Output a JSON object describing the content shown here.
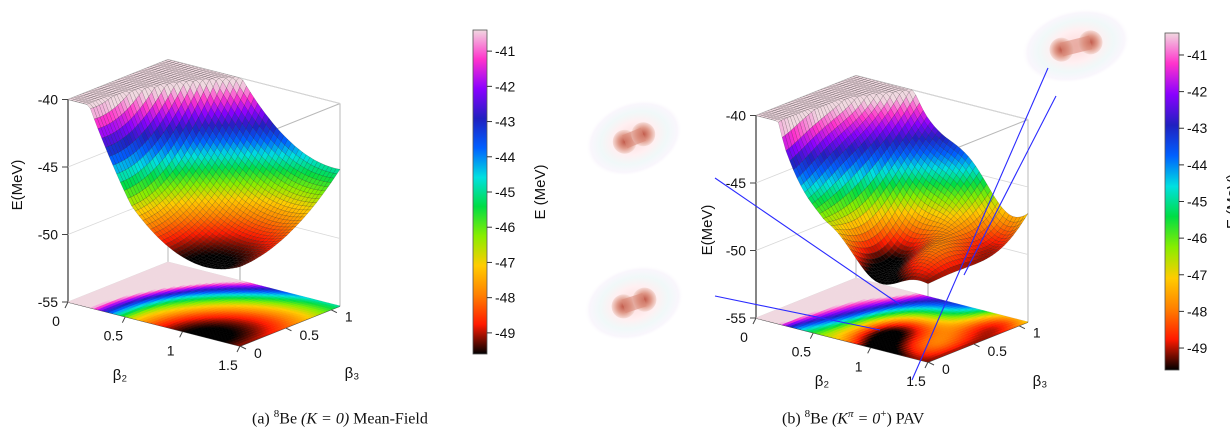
{
  "chart_data": [
    {
      "type": "surface3d",
      "caption": {
        "prefix": "(a) ",
        "isotope": "Be",
        "mass": "8",
        "condition": "(K = 0)",
        "method": "Mean-Field"
      },
      "xlabel": "β₂",
      "ylabel": "β₃",
      "zlabel": "E(MeV)",
      "x_ticks": [
        "0",
        "0.5",
        "1",
        "1.5"
      ],
      "y_ticks": [
        "0",
        "0.5",
        "1"
      ],
      "z_ticks": [
        "-40",
        "-45",
        "-50",
        "-55"
      ],
      "xlim": [
        0,
        1.5
      ],
      "ylim": [
        0,
        1.1
      ],
      "zlim": [
        -55,
        -40
      ],
      "minimum": {
        "beta2": 1.2,
        "beta3": 0.0,
        "E": -49.8
      },
      "colorbar": {
        "label": "E (MeV)",
        "ticks": [
          "-41",
          "-42",
          "-43",
          "-44",
          "-45",
          "-46",
          "-47",
          "-48",
          "-49"
        ],
        "range": [
          -49.6,
          -40.4
        ]
      }
    },
    {
      "type": "surface3d",
      "caption": {
        "prefix": "(b) ",
        "isotope": "Be",
        "mass": "8",
        "condition": "(K",
        "parity": "π",
        "condition_end": " = 0",
        "parity_sup": "+",
        "method": ") PAV"
      },
      "xlabel": "β₂",
      "ylabel": "β₃",
      "zlabel": "E(MeV)",
      "x_ticks": [
        "0",
        "0.5",
        "1",
        "1.5"
      ],
      "y_ticks": [
        "0",
        "0.5",
        "1"
      ],
      "z_ticks": [
        "-40",
        "-45",
        "-50",
        "-55"
      ],
      "xlim": [
        0,
        1.5
      ],
      "ylim": [
        0,
        1.1
      ],
      "zlim": [
        -55,
        -40
      ],
      "minimum": {
        "beta2": 1.3,
        "beta3": 0.0,
        "E": -49.8
      },
      "colorbar": {
        "label": "E (MeV)",
        "ticks": [
          "-41",
          "-42",
          "-43",
          "-44",
          "-45",
          "-46",
          "-47",
          "-48",
          "-49"
        ],
        "range": [
          -49.6,
          -40.4
        ]
      }
    }
  ],
  "colors": {
    "scale": [
      "#000000",
      "#ff1a00",
      "#ff8000",
      "#ffcc00",
      "#88ee00",
      "#00dd44",
      "#00e0e0",
      "#0060ff",
      "#2020c0",
      "#8a00ff",
      "#ff33cc",
      "#f0d8e0"
    ],
    "pointer_lines": "#2a2aff"
  }
}
